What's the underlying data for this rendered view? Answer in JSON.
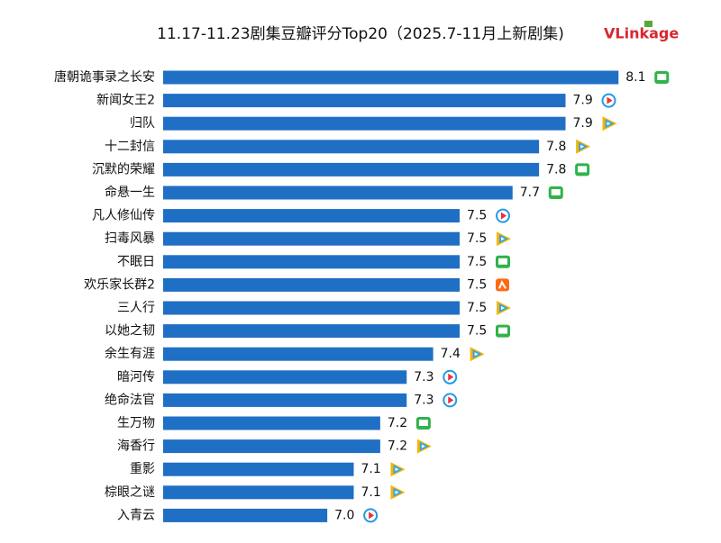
{
  "chart_data": {
    "type": "barh",
    "title": "11.17-11.23剧集豆瓣评分Top20（2025.7-11月上新剧集)",
    "logo": "VLinkage",
    "categories": [
      "唐朝诡事录之长安",
      "新闻女王2",
      "归队",
      "十二封信",
      "沉默的荣耀",
      "命悬一生",
      "凡人修仙传",
      "扫毒风暴",
      "不眠日",
      "欢乐家长群2",
      "三人行",
      "以她之韧",
      "余生有涯",
      "暗河传",
      "绝命法官",
      "生万物",
      "海香行",
      "重影",
      "棕眼之谜",
      "入青云"
    ],
    "values": [
      8.1,
      7.9,
      7.9,
      7.8,
      7.8,
      7.7,
      7.5,
      7.5,
      7.5,
      7.5,
      7.5,
      7.5,
      7.4,
      7.3,
      7.3,
      7.2,
      7.2,
      7.1,
      7.1,
      7.0
    ],
    "value_labels": [
      "8.1",
      "7.9",
      "7.9",
      "7.8",
      "7.8",
      "7.7",
      "7.5",
      "7.5",
      "7.5",
      "7.5",
      "7.5",
      "7.5",
      "7.4",
      "7.3",
      "7.3",
      "7.2",
      "7.2",
      "7.1",
      "7.1",
      "7.0"
    ],
    "icons": [
      "iqiyi",
      "youku",
      "tencent",
      "tencent",
      "iqiyi",
      "iqiyi",
      "youku",
      "tencent",
      "iqiyi",
      "mango",
      "tencent",
      "iqiyi",
      "tencent",
      "youku",
      "youku",
      "iqiyi",
      "tencent",
      "tencent",
      "tencent",
      "youku"
    ],
    "color": "#1f6fc5",
    "xlim": [
      6.38,
      8.3
    ]
  }
}
